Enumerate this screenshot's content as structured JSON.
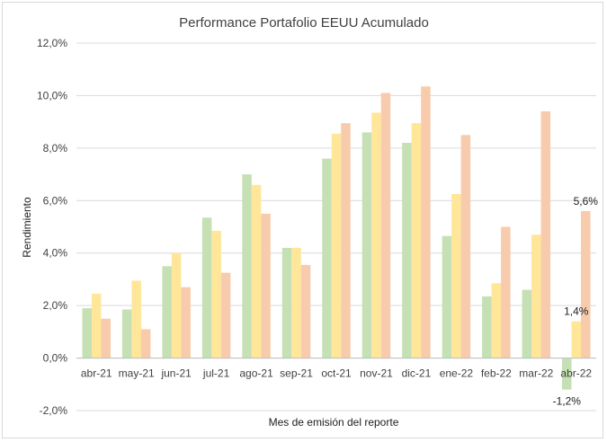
{
  "chart_data": {
    "type": "bar",
    "title": "Performance Portafolio EEUU Acumulado",
    "xlabel": "Mes de emisión del reporte",
    "ylabel": "Rendimiento",
    "ylim": [
      -2,
      12
    ],
    "ystep": 2,
    "ytick_labels": [
      "-2,0%",
      "0,0%",
      "2,0%",
      "4,0%",
      "6,0%",
      "8,0%",
      "10,0%",
      "12,0%"
    ],
    "grid": true,
    "legend": "none",
    "categories": [
      "abr-21",
      "may-21",
      "jun-21",
      "jul-21",
      "ago-21",
      "sep-21",
      "oct-21",
      "nov-21",
      "dic-21",
      "ene-22",
      "feb-22",
      "mar-22",
      "abr-22"
    ],
    "series": [
      {
        "color": "#c5e0b4",
        "values": [
          1.9,
          1.85,
          3.5,
          5.35,
          7.0,
          4.2,
          7.6,
          8.6,
          8.2,
          4.65,
          2.35,
          2.6,
          -1.2
        ]
      },
      {
        "color": "#ffe699",
        "values": [
          2.45,
          2.95,
          4.0,
          4.85,
          6.6,
          4.2,
          8.55,
          9.35,
          8.95,
          6.25,
          2.85,
          4.7,
          1.4
        ]
      },
      {
        "color": "#f8cbad",
        "values": [
          1.5,
          1.1,
          2.7,
          3.25,
          5.5,
          3.55,
          8.95,
          10.1,
          10.35,
          8.5,
          5.0,
          9.4,
          5.6
        ]
      }
    ],
    "data_labels": [
      {
        "series": 0,
        "index": 12,
        "text": "-1,2%"
      },
      {
        "series": 1,
        "index": 12,
        "text": "1,4%"
      },
      {
        "series": 2,
        "index": 12,
        "text": "5,6%"
      }
    ]
  }
}
